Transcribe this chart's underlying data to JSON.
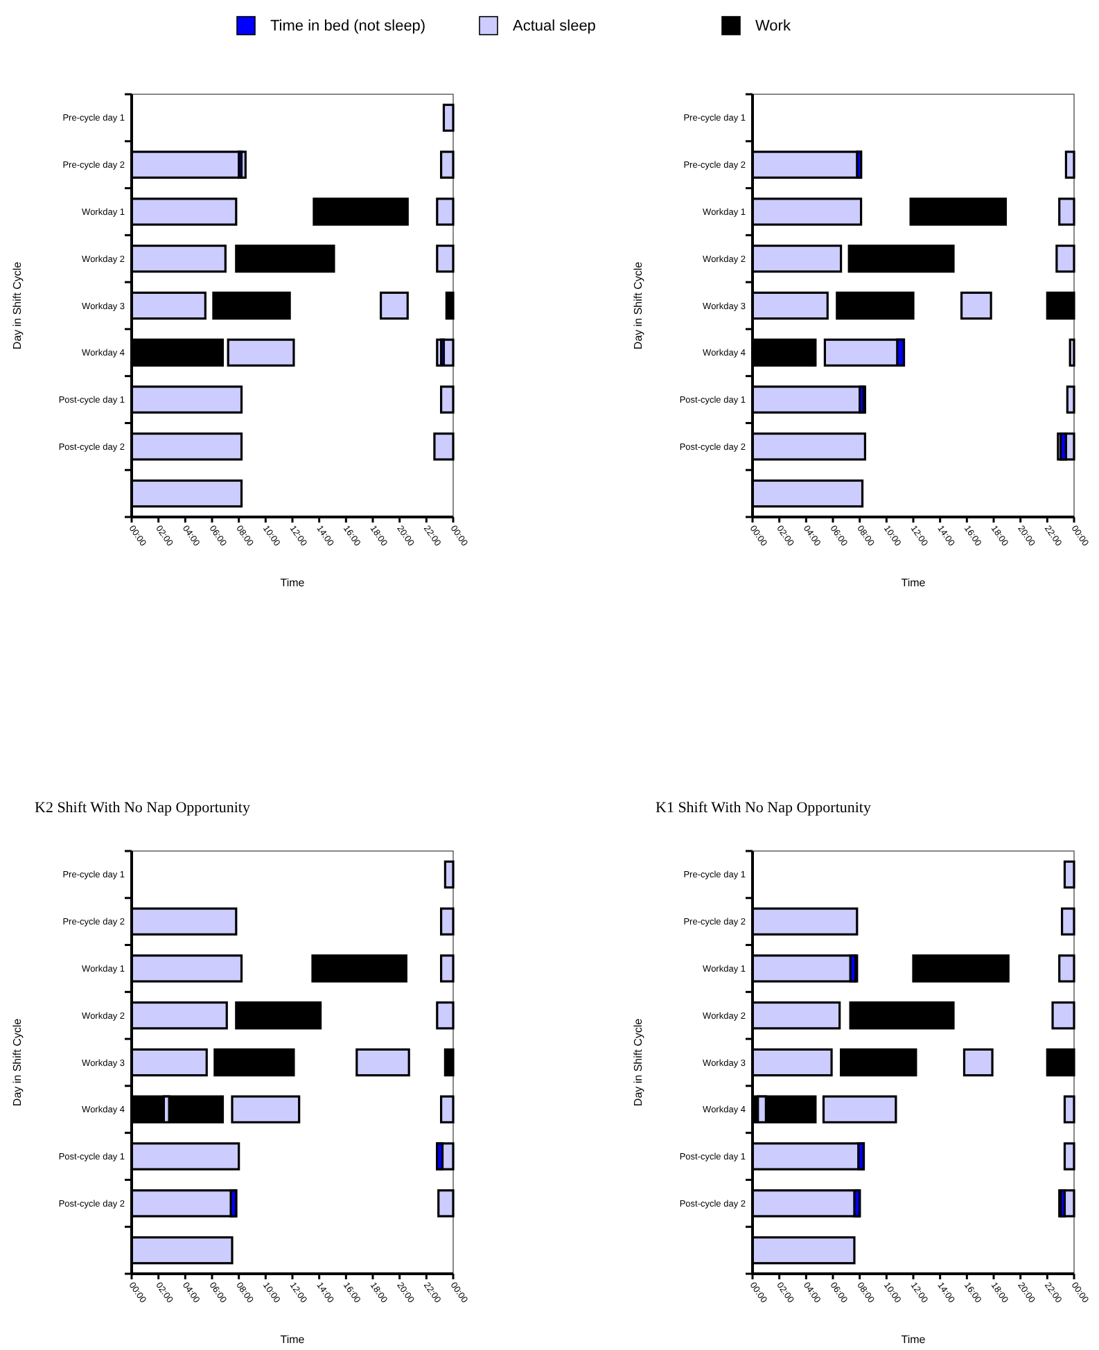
{
  "chart_data": [
    {
      "type": "bar",
      "orientation": "horizontal",
      "legend": "top",
      "xlabel": "Time",
      "ylabel": "Day in Shift Cycle",
      "categories": [
        "Pre-cycle day 1",
        "Pre-cycle day 2",
        "Workday 1",
        "Workday 2",
        "Workday 3",
        "Workday 4",
        "Post-cycle day 1",
        "Post-cycle day 2",
        null
      ],
      "xlim": [
        0,
        24
      ],
      "xticks": [
        {
          "value": 0,
          "label": "00:00"
        },
        {
          "value": 2,
          "label": "02:00"
        },
        {
          "value": 4,
          "label": "04:00"
        },
        {
          "value": 6,
          "label": "06:00"
        },
        {
          "value": 8,
          "label": "08:00"
        },
        {
          "value": 10,
          "label": "10:00"
        },
        {
          "value": 12,
          "label": "12:00"
        },
        {
          "value": 14,
          "label": "14:00"
        },
        {
          "value": 16,
          "label": "16:00"
        },
        {
          "value": 18,
          "label": "18:00"
        },
        {
          "value": 20,
          "label": "20:00"
        },
        {
          "value": 22,
          "label": "22:00"
        },
        {
          "value": 24,
          "label": "00:00"
        }
      ],
      "series": [
        {
          "name": "Time in bed (not sleep)",
          "color": "#0000ff",
          "base": [
            null,
            8.0,
            null,
            null,
            null,
            23.1,
            null,
            null,
            null
          ],
          "values": [
            null,
            0.2,
            null,
            null,
            null,
            0.2,
            null,
            null,
            null
          ]
        },
        {
          "name": "Actual sleep",
          "color": "#ccccff",
          "base": [
            23.3,
            0,
            0,
            0,
            0,
            7.2,
            0,
            0,
            0
          ],
          "values": [
            0.7,
            8.5,
            7.8,
            7.0,
            5.5,
            4.9,
            8.2,
            8.2,
            8.2
          ]
        },
        {
          "color": "#ccccff",
          "base": [
            null,
            23.1,
            22.8,
            22.8,
            18.6,
            22.8,
            23.1,
            22.6,
            null
          ],
          "values": [
            null,
            0.9,
            1.2,
            1.2,
            2.0,
            1.2,
            0.9,
            1.4,
            null
          ]
        },
        {
          "name": "Work",
          "color": "#000000",
          "base": [
            null,
            null,
            13.6,
            7.8,
            6.1,
            0,
            null,
            null,
            null
          ],
          "values": [
            null,
            null,
            7.0,
            7.3,
            5.7,
            6.8,
            null,
            null,
            null
          ]
        },
        {
          "color": "#000000",
          "base": [
            null,
            null,
            null,
            null,
            23.5,
            null,
            null,
            null,
            null
          ],
          "values": [
            null,
            null,
            null,
            null,
            0.5,
            null,
            null,
            null,
            null
          ]
        }
      ]
    },
    {
      "type": "bar",
      "orientation": "horizontal",
      "xlabel": "Time",
      "ylabel": "Day in Shift Cycle",
      "categories": [
        "Pre-cycle day 1",
        "Pre-cycle day 2",
        "Workday 1",
        "Workday 2",
        "Workday 3",
        "Workday 4",
        "Post-cycle day 1",
        "Post-cycle day 2",
        null
      ],
      "xlim": [
        0,
        24
      ],
      "xticks": [
        {
          "value": 0,
          "label": "00:00"
        },
        {
          "value": 2,
          "label": "02:00"
        },
        {
          "value": 4,
          "label": "04:00"
        },
        {
          "value": 6,
          "label": "06:00"
        },
        {
          "value": 8,
          "label": "08:00"
        },
        {
          "value": 10,
          "label": "10:00"
        },
        {
          "value": 12,
          "label": "12:00"
        },
        {
          "value": 14,
          "label": "14:00"
        },
        {
          "value": 16,
          "label": "16:00"
        },
        {
          "value": 18,
          "label": "18:00"
        },
        {
          "value": 20,
          "label": "20:00"
        },
        {
          "value": 22,
          "label": "22:00"
        },
        {
          "value": 24,
          "label": "00:00"
        }
      ],
      "series": [
        {
          "color": "#0000ff",
          "base": [
            null,
            7.8,
            null,
            null,
            null,
            10.8,
            8.0,
            23.0,
            null
          ],
          "values": [
            null,
            0.3,
            null,
            null,
            null,
            0.5,
            0.3,
            0.4,
            null
          ]
        },
        {
          "color": "#ccccff",
          "base": [
            null,
            0,
            0,
            0,
            0,
            5.4,
            0,
            0,
            0
          ],
          "values": [
            null,
            8.1,
            8.1,
            6.6,
            5.6,
            5.9,
            8.4,
            8.4,
            8.2
          ]
        },
        {
          "color": "#ccccff",
          "base": [
            null,
            23.4,
            22.9,
            22.7,
            15.6,
            23.7,
            23.5,
            22.8,
            null
          ],
          "values": [
            null,
            0.6,
            1.1,
            1.3,
            2.2,
            0.3,
            0.5,
            1.2,
            null
          ]
        },
        {
          "color": "#000000",
          "base": [
            null,
            null,
            11.8,
            7.2,
            6.3,
            0,
            null,
            null,
            null
          ],
          "values": [
            null,
            null,
            7.1,
            7.8,
            5.7,
            4.7,
            null,
            null,
            null
          ]
        },
        {
          "color": "#000000",
          "base": [
            null,
            null,
            null,
            null,
            22.0,
            null,
            null,
            null,
            null
          ],
          "values": [
            null,
            null,
            null,
            null,
            2.0,
            null,
            null,
            null,
            null
          ]
        }
      ]
    },
    {
      "type": "bar",
      "orientation": "horizontal",
      "title": "K2 Shift With No Nap Opportunity",
      "xlabel": "Time",
      "ylabel": "Day in Shift Cycle",
      "categories": [
        "Pre-cycle day 1",
        "Pre-cycle day 2",
        "Workday 1",
        "Workday 2",
        "Workday 3",
        "Workday 4",
        "Post-cycle day 1",
        "Post-cycle day 2",
        null
      ],
      "xlim": [
        0,
        24
      ],
      "xticks": [
        {
          "value": 0,
          "label": "00:00"
        },
        {
          "value": 2,
          "label": "02:00"
        },
        {
          "value": 4,
          "label": "04:00"
        },
        {
          "value": 6,
          "label": "06:00"
        },
        {
          "value": 8,
          "label": "08:00"
        },
        {
          "value": 10,
          "label": "10:00"
        },
        {
          "value": 12,
          "label": "12:00"
        },
        {
          "value": 14,
          "label": "14:00"
        },
        {
          "value": 16,
          "label": "16:00"
        },
        {
          "value": 18,
          "label": "18:00"
        },
        {
          "value": 20,
          "label": "20:00"
        },
        {
          "value": 22,
          "label": "22:00"
        },
        {
          "value": 24,
          "label": "00:00"
        }
      ],
      "series": [
        {
          "color": "#0000ff",
          "base": [
            null,
            null,
            null,
            null,
            null,
            null,
            22.8,
            7.4,
            null
          ],
          "values": [
            null,
            null,
            null,
            null,
            null,
            null,
            0.4,
            0.4,
            null
          ]
        },
        {
          "color": "#ccccff",
          "base": [
            23.4,
            0,
            0,
            0,
            0,
            2.4,
            0,
            0,
            0
          ],
          "values": [
            0.6,
            7.8,
            8.2,
            7.1,
            5.6,
            0.4,
            8.0,
            7.8,
            7.5
          ]
        },
        {
          "color": "#ccccff",
          "base": [
            null,
            23.1,
            23.1,
            22.8,
            16.8,
            7.5,
            22.8,
            22.9,
            null
          ],
          "values": [
            null,
            0.9,
            0.9,
            1.2,
            3.9,
            5.0,
            1.2,
            1.1,
            null
          ]
        },
        {
          "color": "#ccccff",
          "base": [
            null,
            null,
            null,
            null,
            null,
            23.1,
            null,
            null,
            null
          ],
          "values": [
            null,
            null,
            null,
            null,
            null,
            0.9,
            null,
            null,
            null
          ]
        },
        {
          "color": "#000000",
          "base": [
            null,
            null,
            13.5,
            7.8,
            6.2,
            0,
            null,
            null,
            null
          ],
          "values": [
            null,
            null,
            7.0,
            6.3,
            5.9,
            6.8,
            null,
            null,
            null
          ]
        },
        {
          "color": "#000000",
          "base": [
            null,
            null,
            null,
            null,
            23.4,
            null,
            null,
            null,
            null
          ],
          "values": [
            null,
            null,
            null,
            null,
            0.6,
            null,
            null,
            null,
            null
          ]
        }
      ]
    },
    {
      "type": "bar",
      "orientation": "horizontal",
      "title": "K1 Shift With No Nap Opportunity",
      "xlabel": "Time",
      "ylabel": "Day in Shift Cycle",
      "categories": [
        "Pre-cycle day 1",
        "Pre-cycle day 2",
        "Workday 1",
        "Workday 2",
        "Workday 3",
        "Workday 4",
        "Post-cycle day 1",
        "Post-cycle day 2",
        null
      ],
      "xlim": [
        0,
        24
      ],
      "xticks": [
        {
          "value": 0,
          "label": "00:00"
        },
        {
          "value": 2,
          "label": "02:00"
        },
        {
          "value": 4,
          "label": "04:00"
        },
        {
          "value": 6,
          "label": "06:00"
        },
        {
          "value": 8,
          "label": "08:00"
        },
        {
          "value": 10,
          "label": "10:00"
        },
        {
          "value": 12,
          "label": "12:00"
        },
        {
          "value": 14,
          "label": "14:00"
        },
        {
          "value": 16,
          "label": "16:00"
        },
        {
          "value": 18,
          "label": "18:00"
        },
        {
          "value": 20,
          "label": "20:00"
        },
        {
          "value": 22,
          "label": "22:00"
        },
        {
          "value": 24,
          "label": "00:00"
        }
      ],
      "series": [
        {
          "color": "#0000ff",
          "base": [
            null,
            null,
            7.3,
            null,
            null,
            null,
            7.9,
            7.6,
            null
          ],
          "values": [
            null,
            null,
            0.4,
            null,
            null,
            null,
            0.4,
            0.4,
            null
          ]
        },
        {
          "color": "#0000ff",
          "base": [
            null,
            null,
            null,
            null,
            null,
            null,
            null,
            23.0,
            null
          ],
          "values": [
            null,
            null,
            null,
            null,
            null,
            null,
            null,
            0.3,
            null
          ]
        },
        {
          "color": "#ccccff",
          "base": [
            23.3,
            0,
            0,
            0,
            0,
            0.4,
            0,
            0,
            0
          ],
          "values": [
            0.7,
            7.8,
            7.8,
            6.5,
            5.9,
            0.6,
            8.3,
            8.0,
            7.6
          ]
        },
        {
          "color": "#ccccff",
          "base": [
            null,
            23.1,
            22.9,
            22.4,
            15.8,
            5.3,
            23.3,
            22.9,
            null
          ],
          "values": [
            null,
            0.9,
            1.1,
            1.6,
            2.1,
            5.4,
            0.7,
            1.1,
            null
          ]
        },
        {
          "color": "#ccccff",
          "base": [
            null,
            null,
            null,
            null,
            null,
            23.3,
            null,
            null,
            null
          ],
          "values": [
            null,
            null,
            null,
            null,
            null,
            0.7,
            null,
            null,
            null
          ]
        },
        {
          "color": "#000000",
          "base": [
            null,
            null,
            12.0,
            7.3,
            6.6,
            0,
            null,
            null,
            null
          ],
          "values": [
            null,
            null,
            7.1,
            7.7,
            5.6,
            4.7,
            null,
            null,
            null
          ]
        },
        {
          "color": "#000000",
          "base": [
            null,
            null,
            null,
            null,
            22.0,
            null,
            null,
            null,
            null
          ],
          "values": [
            null,
            null,
            null,
            null,
            2.0,
            null,
            null,
            null,
            null
          ]
        }
      ]
    }
  ]
}
